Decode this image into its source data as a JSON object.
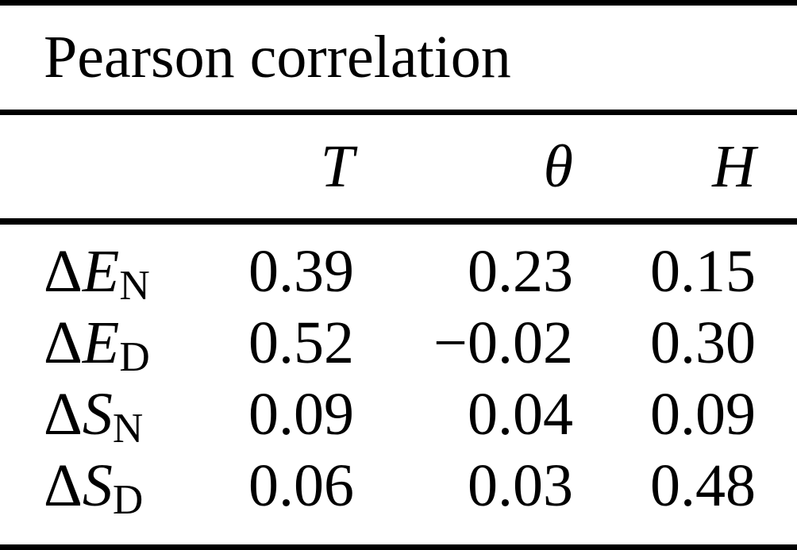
{
  "table": {
    "title": "Pearson correlation",
    "columns": [
      "T",
      "θ",
      "H"
    ],
    "rows": [
      {
        "label": {
          "prefix": "Δ",
          "symbol": "E",
          "subscript": "N"
        },
        "values": [
          "0.39",
          "0.23",
          "0.15"
        ]
      },
      {
        "label": {
          "prefix": "Δ",
          "symbol": "E",
          "subscript": "D"
        },
        "values": [
          "0.52",
          "−0.02",
          "0.30"
        ]
      },
      {
        "label": {
          "prefix": "Δ",
          "symbol": "S",
          "subscript": "N"
        },
        "values": [
          "0.09",
          "0.04",
          "0.09"
        ]
      },
      {
        "label": {
          "prefix": "Δ",
          "symbol": "S",
          "subscript": "D"
        },
        "values": [
          "0.06",
          "0.03",
          "0.48"
        ]
      }
    ],
    "colors": {
      "text": "#000000",
      "background": "#ffffff",
      "rule": "#000000"
    }
  }
}
